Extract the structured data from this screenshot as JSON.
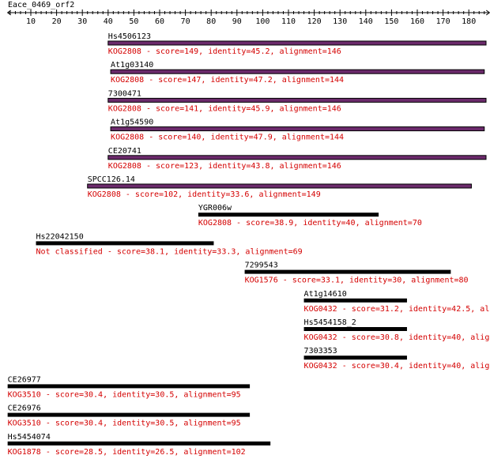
{
  "query": {
    "name": "Eace_0469_orf2",
    "length": 188
  },
  "ruler": {
    "ticks": [
      10,
      20,
      30,
      40,
      50,
      60,
      70,
      80,
      90,
      100,
      110,
      120,
      130,
      140,
      150,
      160,
      170,
      180
    ]
  },
  "colors": {
    "bar_default": "#000000",
    "bar_highlight": "#6b2a6b",
    "bar_highlight_border": "#000000",
    "info_text": "#d40000",
    "label_text": "#000000"
  },
  "hits": [
    {
      "name": "Hs4506123",
      "start": 40,
      "end": 188,
      "highlight": true,
      "info": "KOG2808 - score=149, identity=45.2, alignment=146"
    },
    {
      "name": "At1g03140",
      "start": 41,
      "end": 186,
      "highlight": true,
      "info": "KOG2808 - score=147, identity=47.2, alignment=144"
    },
    {
      "name": "7300471",
      "start": 40,
      "end": 188,
      "highlight": true,
      "info": "KOG2808 - score=141, identity=45.9, alignment=146"
    },
    {
      "name": "At1g54590",
      "start": 41,
      "end": 186,
      "highlight": true,
      "info": "KOG2808 - score=140, identity=47.9, alignment=144"
    },
    {
      "name": "CE20741",
      "start": 40,
      "end": 188,
      "highlight": true,
      "info": "KOG2808 - score=123, identity=43.8, alignment=146"
    },
    {
      "name": "SPCC126.14",
      "start": 32,
      "end": 181,
      "highlight": true,
      "info": "KOG2808 - score=102, identity=33.6, alignment=149"
    },
    {
      "name": "YGR006w",
      "start": 75,
      "end": 145,
      "highlight": false,
      "info": "KOG2808 - score=38.9, identity=40, alignment=70"
    },
    {
      "name": "Hs22042150",
      "start": 12,
      "end": 81,
      "highlight": false,
      "info": "Not classified - score=38.1, identity=33.3, alignment=69"
    },
    {
      "name": "7299543",
      "start": 93,
      "end": 173,
      "highlight": false,
      "info": "KOG1576 - score=33.1, identity=30, alignment=80"
    },
    {
      "name": "At1g14610",
      "start": 116,
      "end": 156,
      "highlight": false,
      "info": "KOG0432 - score=31.2, identity=42.5, ali"
    },
    {
      "name": "Hs5454158_2",
      "start": 116,
      "end": 156,
      "highlight": false,
      "info": "KOG0432 - score=30.8, identity=40, alig"
    },
    {
      "name": "7303353",
      "start": 116,
      "end": 156,
      "highlight": false,
      "info": "KOG0432 - score=30.4, identity=40, alig"
    },
    {
      "name": "CE26977",
      "start": 1,
      "end": 95,
      "highlight": false,
      "info": "KOG3510 - score=30.4, identity=30.5, alignment=95"
    },
    {
      "name": "CE26976",
      "start": 1,
      "end": 95,
      "highlight": false,
      "info": "KOG3510 - score=30.4, identity=30.5, alignment=95"
    },
    {
      "name": "Hs5454074",
      "start": 1,
      "end": 103,
      "highlight": false,
      "info": "KOG1878 - score=28.5, identity=26.5, alignment=102"
    }
  ]
}
